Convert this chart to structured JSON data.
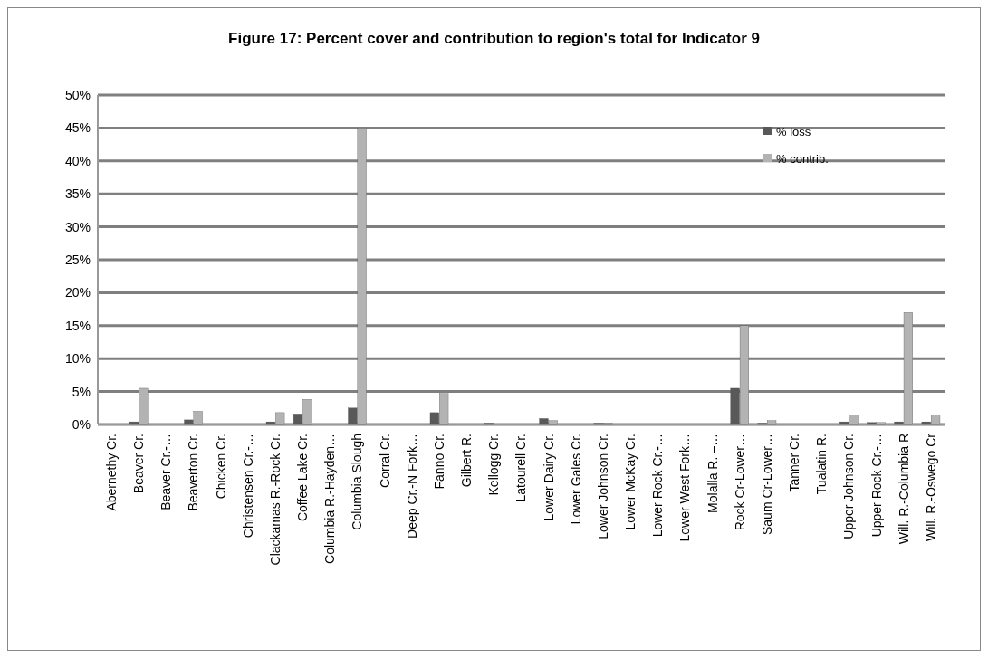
{
  "chart_data": {
    "type": "bar",
    "title": "Figure 17: Percent cover and contribution to region's total for Indicator 9",
    "categories": [
      "Abernethy Cr.",
      "Beaver Cr.",
      "Beaver Cr.-…",
      "Beaverton Cr.",
      "Chicken Cr.",
      "Christensen Cr.-…",
      "Clackamas R.-Rock Cr.",
      "Coffee Lake Cr.",
      "Columbia R.-Hayden…",
      "Columbia Slough",
      "Corral Cr.",
      "Deep Cr.-N Fork…",
      "Fanno Cr.",
      "Gilbert R.",
      "Kellogg Cr.",
      "Latourell Cr.",
      "Lower Dairy Cr.",
      "Lower Gales Cr.",
      "Lower Johnson Cr.",
      "Lower McKay Cr.",
      "Lower Rock Cr.-…",
      "Lower West Fork…",
      "Molalla R. –…",
      "Rock Cr-Lower…",
      "Saum Cr-Lower…",
      "Tanner Cr.",
      "Tualatin R.",
      "Upper Johnson Cr.",
      "Upper Rock Cr.-…",
      "Will. R.-Columbia R",
      "Will. R.-Oswego Cr"
    ],
    "series": [
      {
        "name": "% loss",
        "color": "#595959",
        "values": [
          0,
          0.4,
          0,
          0.7,
          0,
          0,
          0.4,
          1.6,
          0,
          2.5,
          0,
          0,
          1.8,
          0,
          0.2,
          0,
          0.9,
          0,
          0.2,
          0,
          0,
          0,
          0,
          5.5,
          0.2,
          0,
          0,
          0.4,
          0.3,
          0.4,
          0.4
        ]
      },
      {
        "name": "% contrib.",
        "color": "#b3b3b3",
        "values": [
          0,
          5.5,
          0,
          2.0,
          0,
          0,
          1.8,
          3.8,
          0,
          45,
          0,
          0,
          4.7,
          0,
          0,
          0,
          0.6,
          0,
          0.2,
          0,
          0,
          0,
          0,
          15,
          0.6,
          0,
          0,
          1.4,
          0.3,
          17,
          1.4
        ]
      }
    ],
    "ylim": [
      0,
      50
    ],
    "yticks": [
      {
        "value": 0,
        "label": "0%"
      },
      {
        "value": 5,
        "label": "5%"
      },
      {
        "value": 10,
        "label": "10%"
      },
      {
        "value": 15,
        "label": "15%"
      },
      {
        "value": 20,
        "label": "20%"
      },
      {
        "value": 25,
        "label": "25%"
      },
      {
        "value": 30,
        "label": "30%"
      },
      {
        "value": 35,
        "label": "35%"
      },
      {
        "value": 40,
        "label": "40%"
      },
      {
        "value": 45,
        "label": "45%"
      },
      {
        "value": 50,
        "label": "50%"
      }
    ],
    "grid": "y",
    "legend": "top right"
  }
}
